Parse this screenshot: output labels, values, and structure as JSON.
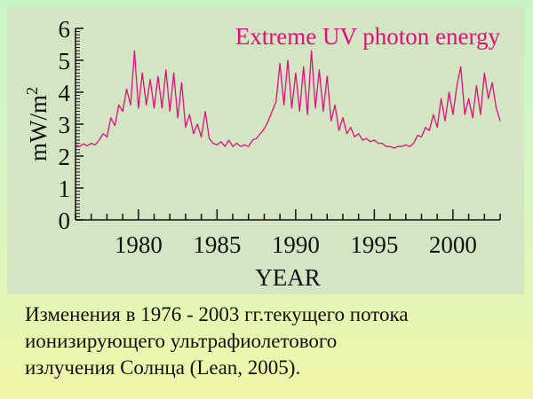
{
  "chart_data": {
    "type": "line",
    "title": "Extreme UV photon energy",
    "xlabel": "YEAR",
    "ylabel": "mW/m²",
    "ylabel_base": "mW/m",
    "ylabel_sup": "2",
    "xlim": [
      1976,
      2003
    ],
    "ylim": [
      0,
      6
    ],
    "xticks": [
      1980,
      1985,
      1990,
      1995,
      2000
    ],
    "xtick_labels": [
      "1980",
      "1985",
      "1990",
      "1995",
      "2000"
    ],
    "yticks": [
      0,
      1,
      2,
      3,
      4,
      5,
      6
    ],
    "ytick_labels": [
      "0",
      "1",
      "2",
      "3",
      "4",
      "5",
      "6"
    ],
    "grid": false,
    "series_color": "#e0107a",
    "points": [
      [
        1976.0,
        2.35
      ],
      [
        1976.25,
        2.3
      ],
      [
        1976.5,
        2.38
      ],
      [
        1976.75,
        2.32
      ],
      [
        1977.0,
        2.4
      ],
      [
        1977.25,
        2.35
      ],
      [
        1977.5,
        2.5
      ],
      [
        1977.75,
        2.7
      ],
      [
        1978.0,
        2.6
      ],
      [
        1978.25,
        3.2
      ],
      [
        1978.5,
        2.95
      ],
      [
        1978.75,
        3.6
      ],
      [
        1979.0,
        3.4
      ],
      [
        1979.25,
        4.1
      ],
      [
        1979.5,
        3.6
      ],
      [
        1979.75,
        5.3
      ],
      [
        1980.0,
        3.5
      ],
      [
        1980.25,
        4.6
      ],
      [
        1980.5,
        3.6
      ],
      [
        1980.75,
        4.4
      ],
      [
        1981.0,
        3.5
      ],
      [
        1981.25,
        4.5
      ],
      [
        1981.5,
        3.5
      ],
      [
        1981.75,
        4.7
      ],
      [
        1982.0,
        3.4
      ],
      [
        1982.25,
        4.6
      ],
      [
        1982.5,
        3.2
      ],
      [
        1982.75,
        4.3
      ],
      [
        1983.0,
        2.9
      ],
      [
        1983.25,
        3.3
      ],
      [
        1983.5,
        2.7
      ],
      [
        1983.75,
        3.0
      ],
      [
        1984.0,
        2.6
      ],
      [
        1984.25,
        3.4
      ],
      [
        1984.5,
        2.55
      ],
      [
        1984.75,
        2.4
      ],
      [
        1985.0,
        2.35
      ],
      [
        1985.25,
        2.45
      ],
      [
        1985.5,
        2.3
      ],
      [
        1985.75,
        2.5
      ],
      [
        1986.0,
        2.3
      ],
      [
        1986.25,
        2.4
      ],
      [
        1986.5,
        2.3
      ],
      [
        1986.75,
        2.35
      ],
      [
        1987.0,
        2.3
      ],
      [
        1987.25,
        2.5
      ],
      [
        1987.5,
        2.55
      ],
      [
        1987.75,
        2.7
      ],
      [
        1988.0,
        2.85
      ],
      [
        1988.25,
        3.1
      ],
      [
        1988.5,
        3.4
      ],
      [
        1988.75,
        3.7
      ],
      [
        1989.0,
        4.9
      ],
      [
        1989.25,
        3.6
      ],
      [
        1989.5,
        5.0
      ],
      [
        1989.75,
        3.5
      ],
      [
        1990.0,
        4.6
      ],
      [
        1990.25,
        3.4
      ],
      [
        1990.5,
        4.8
      ],
      [
        1990.75,
        3.3
      ],
      [
        1991.0,
        5.3
      ],
      [
        1991.25,
        3.5
      ],
      [
        1991.5,
        4.7
      ],
      [
        1991.75,
        3.4
      ],
      [
        1992.0,
        4.5
      ],
      [
        1992.25,
        3.1
      ],
      [
        1992.5,
        3.6
      ],
      [
        1992.75,
        2.8
      ],
      [
        1993.0,
        3.2
      ],
      [
        1993.25,
        2.7
      ],
      [
        1993.5,
        2.9
      ],
      [
        1993.75,
        2.6
      ],
      [
        1994.0,
        2.7
      ],
      [
        1994.25,
        2.5
      ],
      [
        1994.5,
        2.55
      ],
      [
        1994.75,
        2.45
      ],
      [
        1995.0,
        2.5
      ],
      [
        1995.25,
        2.4
      ],
      [
        1995.5,
        2.4
      ],
      [
        1995.75,
        2.3
      ],
      [
        1996.0,
        2.3
      ],
      [
        1996.25,
        2.25
      ],
      [
        1996.5,
        2.3
      ],
      [
        1996.75,
        2.3
      ],
      [
        1997.0,
        2.35
      ],
      [
        1997.25,
        2.3
      ],
      [
        1997.5,
        2.4
      ],
      [
        1997.75,
        2.65
      ],
      [
        1998.0,
        2.6
      ],
      [
        1998.25,
        2.9
      ],
      [
        1998.5,
        2.8
      ],
      [
        1998.75,
        3.3
      ],
      [
        1999.0,
        2.9
      ],
      [
        1999.25,
        3.8
      ],
      [
        1999.5,
        3.1
      ],
      [
        1999.75,
        4.0
      ],
      [
        2000.0,
        3.3
      ],
      [
        2000.25,
        4.2
      ],
      [
        2000.5,
        4.8
      ],
      [
        2000.75,
        3.3
      ],
      [
        2001.0,
        3.8
      ],
      [
        2001.25,
        3.2
      ],
      [
        2001.5,
        4.2
      ],
      [
        2001.75,
        3.3
      ],
      [
        2002.0,
        4.6
      ],
      [
        2002.25,
        3.8
      ],
      [
        2002.5,
        4.3
      ],
      [
        2002.75,
        3.5
      ],
      [
        2003.0,
        3.1
      ]
    ]
  },
  "caption": {
    "lines": [
      "Изменения в 1976 - 2003 гг.текущего потока",
      "ионизирующего ультрафиолетового",
      "излучения Солнца (Lean, 2005)."
    ]
  }
}
